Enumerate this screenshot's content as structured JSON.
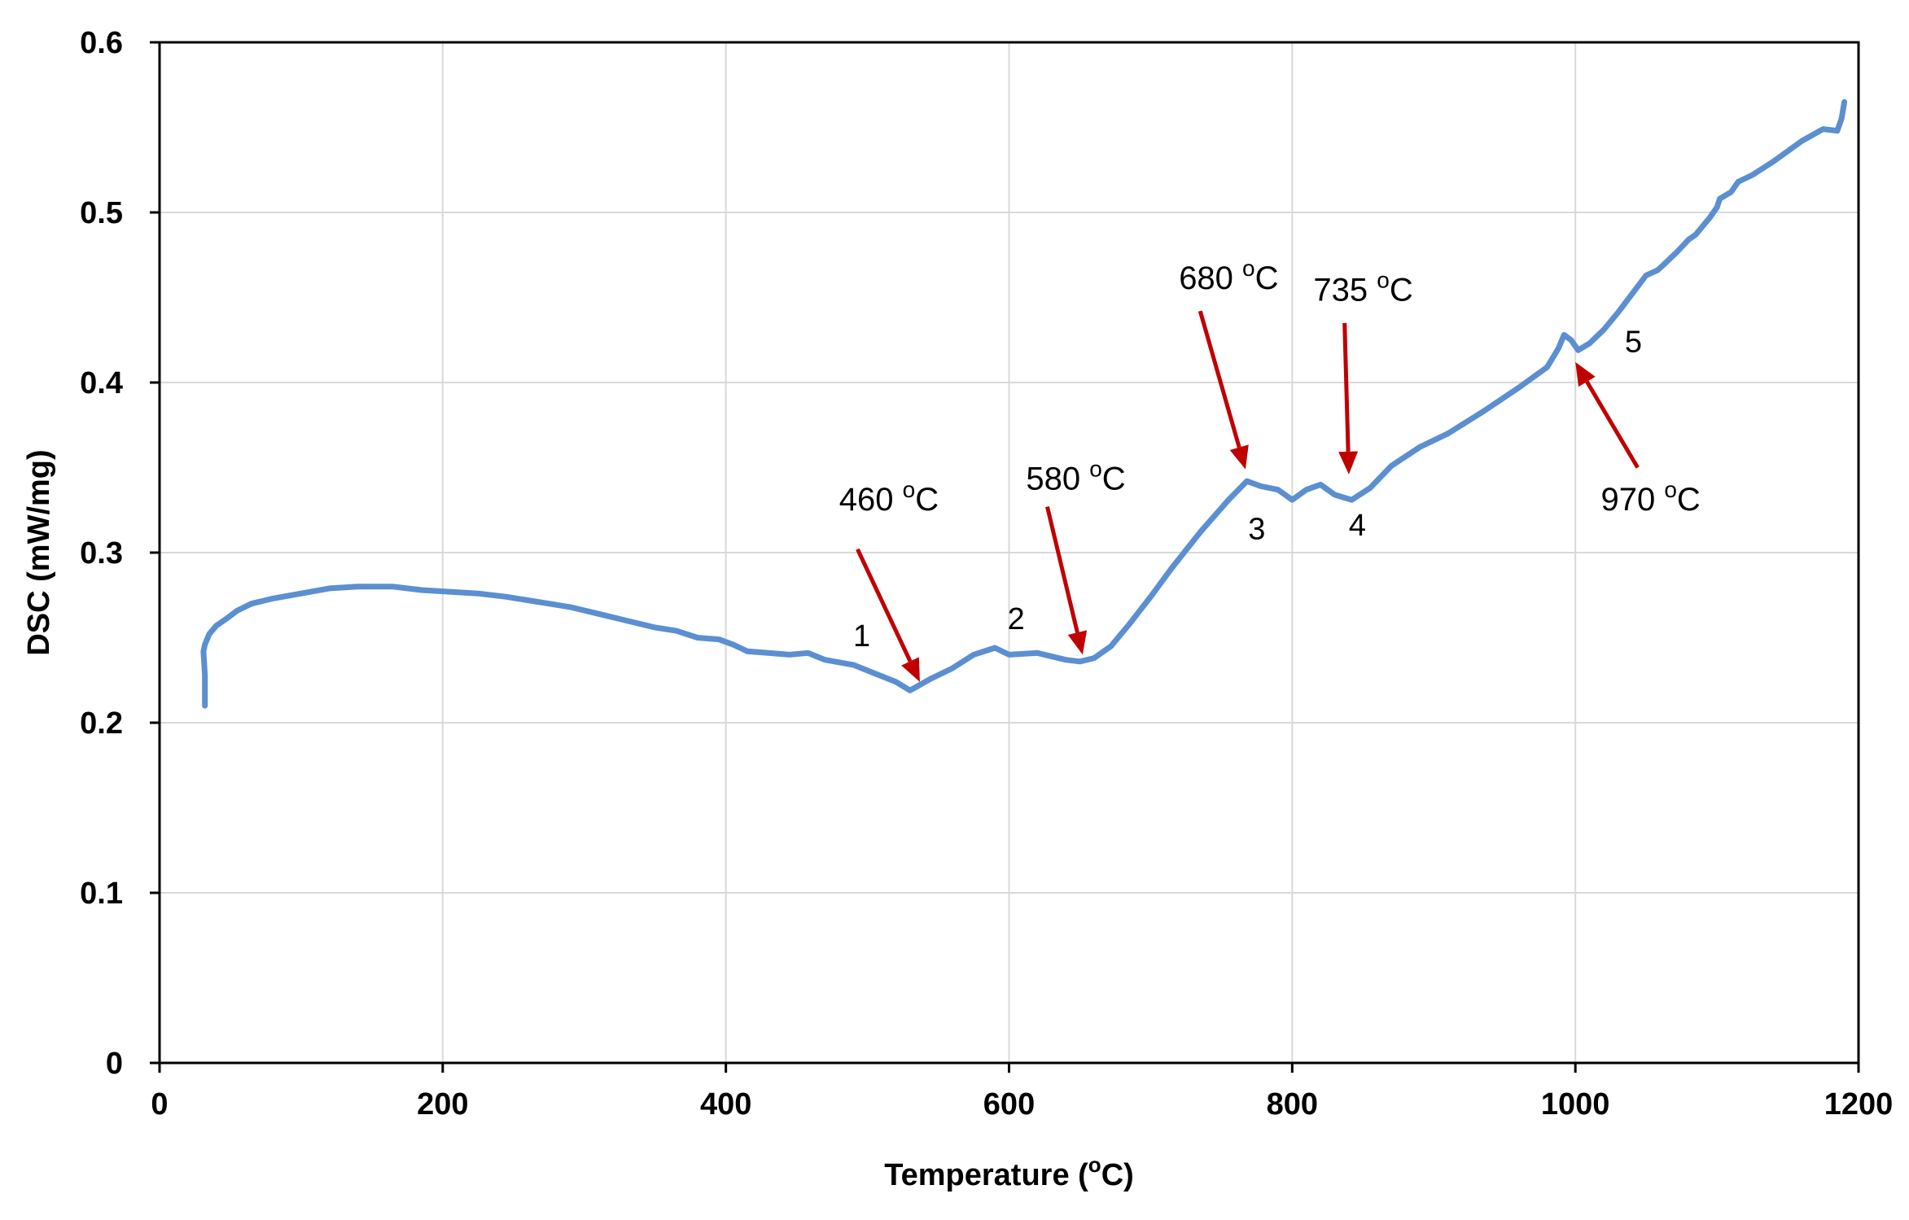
{
  "chart_data": {
    "type": "line",
    "title": "",
    "xlabel": "Temperature (°C)",
    "xlabel_prefix": "Temperature (",
    "xlabel_sup": "o",
    "xlabel_suffix": "C)",
    "ylabel": "DSC (mW/mg)",
    "xlim": [
      0,
      1200
    ],
    "ylim": [
      0,
      0.6
    ],
    "xticks": [
      "0",
      "200",
      "400",
      "600",
      "800",
      "1000",
      "1200"
    ],
    "yticks": [
      "0",
      "0.1",
      "0.2",
      "0.3",
      "0.4",
      "0.5",
      "0.6"
    ],
    "grid": true,
    "line_color": "#5b8fd1",
    "arrow_color": "#c00000",
    "series": [
      {
        "name": "DSC",
        "x": [
          32,
          32,
          31,
          32,
          35,
          40,
          47,
          55,
          65,
          80,
          100,
          120,
          140,
          165,
          185,
          205,
          225,
          245,
          260,
          275,
          290,
          310,
          330,
          350,
          365,
          380,
          395,
          405,
          410,
          415,
          430,
          445,
          458,
          470,
          490,
          505,
          520,
          530,
          545,
          560,
          575,
          590,
          600,
          620,
          640,
          650,
          660,
          672,
          685,
          700,
          715,
          735,
          755,
          768,
          778,
          790,
          800,
          810,
          820,
          830,
          842,
          855,
          870,
          890,
          910,
          935,
          960,
          980,
          988,
          992,
          997,
          1002,
          1010,
          1020,
          1030,
          1040,
          1050,
          1058,
          1062,
          1072,
          1080,
          1085,
          1095,
          1100,
          1102,
          1110,
          1115,
          1125,
          1140,
          1160,
          1175,
          1185,
          1188,
          1190
        ],
        "y": [
          0.21,
          0.228,
          0.242,
          0.246,
          0.252,
          0.257,
          0.261,
          0.266,
          0.27,
          0.273,
          0.276,
          0.279,
          0.28,
          0.28,
          0.278,
          0.277,
          0.276,
          0.274,
          0.272,
          0.27,
          0.268,
          0.264,
          0.26,
          0.256,
          0.254,
          0.25,
          0.249,
          0.246,
          0.244,
          0.242,
          0.241,
          0.24,
          0.241,
          0.237,
          0.234,
          0.229,
          0.224,
          0.219,
          0.226,
          0.232,
          0.24,
          0.244,
          0.24,
          0.241,
          0.237,
          0.236,
          0.238,
          0.245,
          0.258,
          0.274,
          0.291,
          0.312,
          0.331,
          0.342,
          0.339,
          0.337,
          0.331,
          0.337,
          0.34,
          0.334,
          0.331,
          0.338,
          0.351,
          0.362,
          0.37,
          0.383,
          0.397,
          0.409,
          0.42,
          0.428,
          0.425,
          0.419,
          0.423,
          0.431,
          0.441,
          0.452,
          0.463,
          0.466,
          0.469,
          0.477,
          0.484,
          0.487,
          0.497,
          0.503,
          0.508,
          0.512,
          0.518,
          0.522,
          0.53,
          0.542,
          0.549,
          0.548,
          0.555,
          0.565
        ]
      }
    ],
    "annotations": [
      {
        "label": "460",
        "sup": "o",
        "unit": "C",
        "tip_x": 537,
        "tip_y": 0.224,
        "tail_x": 493,
        "tail_y": 0.302
      },
      {
        "label": "580",
        "sup": "o",
        "unit": "C",
        "tip_x": 652,
        "tip_y": 0.24,
        "tail_x": 627,
        "tail_y": 0.327
      },
      {
        "label": "680",
        "sup": "o",
        "unit": "C",
        "tip_x": 767,
        "tip_y": 0.349,
        "tail_x": 735,
        "tail_y": 0.442
      },
      {
        "label": "735",
        "sup": "o",
        "unit": "C",
        "tip_x": 840,
        "tip_y": 0.346,
        "tail_x": 837,
        "tail_y": 0.435
      },
      {
        "label": "970",
        "sup": "o",
        "unit": "C",
        "tip_x": 1000,
        "tip_y": 0.412,
        "tail_x": 1044,
        "tail_y": 0.35
      }
    ],
    "annotation_labels": [
      {
        "text": "460",
        "sup": "o",
        "unit": "C",
        "x": 480,
        "y": 0.325
      },
      {
        "text": "580",
        "sup": "o",
        "unit": "C",
        "x": 612,
        "y": 0.337
      },
      {
        "text": "680",
        "sup": "o",
        "unit": "C",
        "x": 720,
        "y": 0.455
      },
      {
        "text": "735",
        "sup": "o",
        "unit": "C",
        "x": 815,
        "y": 0.448
      },
      {
        "text": "970",
        "sup": "o",
        "unit": "C",
        "x": 1018,
        "y": 0.325
      }
    ],
    "peak_labels": [
      {
        "text": "1",
        "x": 496,
        "y": 0.245
      },
      {
        "text": "2",
        "x": 605,
        "y": 0.255
      },
      {
        "text": "3",
        "x": 775,
        "y": 0.308
      },
      {
        "text": "4",
        "x": 846,
        "y": 0.31
      },
      {
        "text": "5",
        "x": 1041,
        "y": 0.418
      }
    ]
  }
}
